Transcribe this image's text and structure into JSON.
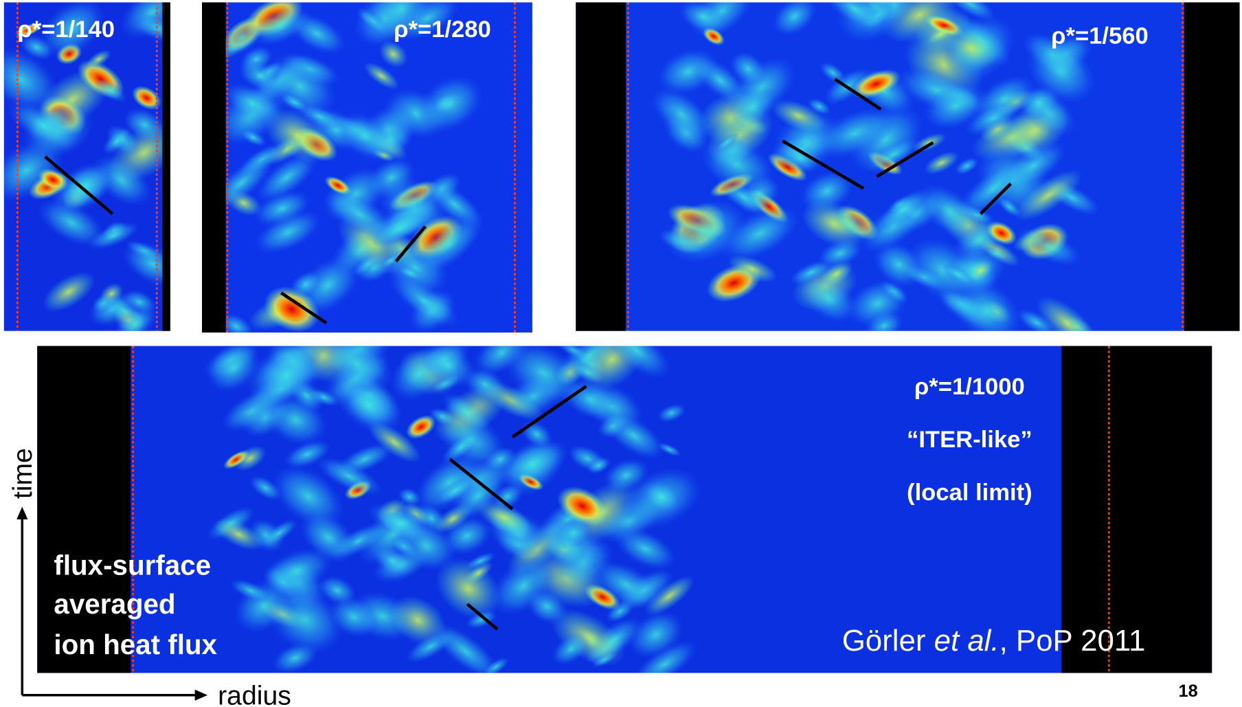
{
  "panels": [
    {
      "label": "ρ*=1/140"
    },
    {
      "label": "ρ*=1/280"
    },
    {
      "label": "ρ*=1/560"
    },
    {
      "label": "ρ*=1/1000",
      "notes": [
        "“ITER-like”",
        "(local limit)"
      ]
    }
  ],
  "caption": [
    "flux-surface",
    "averaged",
    "ion heat flux"
  ],
  "citation": {
    "author": "Görler ",
    "etal": "et al.",
    "rest": ", PoP 2011"
  },
  "axes": {
    "y": "time",
    "x": "radius"
  },
  "slide_number": "18"
}
